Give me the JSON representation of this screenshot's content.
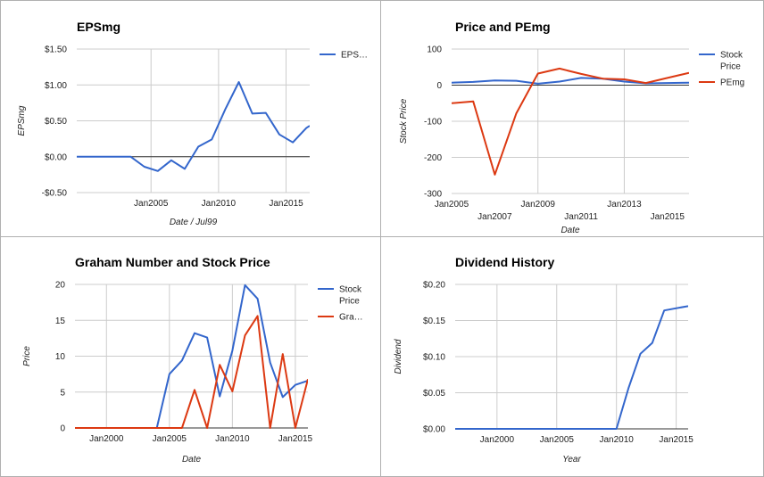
{
  "chart_data": [
    {
      "id": "eps",
      "type": "line",
      "title": "EPSmg",
      "xlabel": "Date / Jul99",
      "ylabel": "EPSmg",
      "x_type": "year",
      "xlim": [
        1999.5,
        2016.75
      ],
      "ylim": [
        -0.5,
        1.5
      ],
      "yticks": [
        {
          "v": 1.5,
          "label": "$1.50"
        },
        {
          "v": 1.0,
          "label": "$1.00"
        },
        {
          "v": 0.5,
          "label": "$0.50"
        },
        {
          "v": 0.0,
          "label": "$0.00"
        },
        {
          "v": -0.5,
          "label": "-$0.50"
        }
      ],
      "xticks": [
        {
          "v": 2005,
          "label": "Jan2005"
        },
        {
          "v": 2010,
          "label": "Jan2010"
        },
        {
          "v": 2015,
          "label": "Jan2015"
        }
      ],
      "xgrid": [
        2005,
        2010,
        2015
      ],
      "zero_line": 0,
      "legend_position": "right",
      "series": [
        {
          "name": "EPS…",
          "color": "#3366cc",
          "x": [
            1999.5,
            2002,
            2003.5,
            2004.5,
            2005.5,
            2006.5,
            2007.5,
            2008.5,
            2009.5,
            2010.5,
            2011.5,
            2012.5,
            2013.5,
            2014.5,
            2015.5,
            2016.5,
            2016.75
          ],
          "y": [
            0.0,
            0.0,
            0.0,
            -0.14,
            -0.2,
            -0.05,
            -0.17,
            0.14,
            0.24,
            0.66,
            1.04,
            0.6,
            0.61,
            0.31,
            0.2,
            0.4,
            0.43
          ]
        }
      ]
    },
    {
      "id": "price_pe",
      "type": "line",
      "title": "Price and PEmg",
      "xlabel": "Date",
      "ylabel": "Stock Price",
      "x_type": "year",
      "xlim": [
        2005,
        2016
      ],
      "ylim": [
        -300,
        100
      ],
      "yticks": [
        {
          "v": 100,
          "label": "100"
        },
        {
          "v": 0,
          "label": "0"
        },
        {
          "v": -100,
          "label": "-100"
        },
        {
          "v": -200,
          "label": "-200"
        },
        {
          "v": -300,
          "label": "-300"
        }
      ],
      "xticks": [
        {
          "v": 2005,
          "label": "Jan2005",
          "row": 0
        },
        {
          "v": 2007,
          "label": "Jan2007",
          "row": 1
        },
        {
          "v": 2009,
          "label": "Jan2009",
          "row": 0
        },
        {
          "v": 2011,
          "label": "Jan2011",
          "row": 1
        },
        {
          "v": 2013,
          "label": "Jan2013",
          "row": 0
        },
        {
          "v": 2015,
          "label": "Jan2015",
          "row": 1
        }
      ],
      "xgrid": [
        2009,
        2013
      ],
      "zero_line": 0,
      "legend_position": "right",
      "series": [
        {
          "name": "Stock Price",
          "color": "#3366cc",
          "x": [
            2005,
            2006,
            2007,
            2008,
            2009,
            2010,
            2011,
            2012,
            2013,
            2014,
            2015,
            2016
          ],
          "y": [
            7,
            9,
            13,
            12,
            4,
            10,
            20,
            18,
            10,
            5,
            6,
            7
          ]
        },
        {
          "name": "PEmg",
          "color": "#dc3912",
          "x": [
            2005,
            2006,
            2007,
            2008,
            2009,
            2010,
            2011,
            2012,
            2013,
            2014,
            2015,
            2016
          ],
          "y": [
            -50,
            -45,
            -248,
            -78,
            32,
            46,
            31,
            18,
            16,
            6,
            20,
            34
          ]
        }
      ]
    },
    {
      "id": "graham",
      "type": "line",
      "title": "Graham Number and Stock Price",
      "xlabel": "Date",
      "ylabel": "Price",
      "x_type": "year",
      "xlim": [
        1997.5,
        2016
      ],
      "ylim": [
        0,
        20
      ],
      "yticks": [
        {
          "v": 20,
          "label": "20"
        },
        {
          "v": 15,
          "label": "15"
        },
        {
          "v": 10,
          "label": "10"
        },
        {
          "v": 5,
          "label": "5"
        },
        {
          "v": 0,
          "label": "0"
        }
      ],
      "xticks": [
        {
          "v": 2000,
          "label": "Jan2000"
        },
        {
          "v": 2005,
          "label": "Jan2005"
        },
        {
          "v": 2010,
          "label": "Jan2010"
        },
        {
          "v": 2015,
          "label": "Jan2015"
        }
      ],
      "xgrid": [
        2000,
        2005,
        2010,
        2015
      ],
      "zero_line": 0,
      "legend_position": "right",
      "series": [
        {
          "name": "Stock Price",
          "color": "#3366cc",
          "x": [
            1997.5,
            2004,
            2005,
            2006,
            2007,
            2008,
            2009,
            2010,
            2011,
            2012,
            2013,
            2014,
            2015,
            2016
          ],
          "y": [
            0,
            0,
            7.5,
            9.4,
            13.2,
            12.6,
            4.4,
            10.8,
            19.9,
            18.0,
            9.1,
            4.3,
            6.0,
            6.6
          ]
        },
        {
          "name": "Gra…",
          "color": "#dc3912",
          "x": [
            1997.5,
            2006,
            2007,
            2008,
            2009,
            2010,
            2011,
            2012,
            2013,
            2014,
            2015,
            2016
          ],
          "y": [
            0,
            0,
            5.3,
            0,
            8.8,
            5.1,
            12.9,
            15.6,
            0,
            10.3,
            0,
            6.8
          ]
        }
      ]
    },
    {
      "id": "dividend",
      "type": "line",
      "title": "Dividend History",
      "xlabel": "Year",
      "ylabel": "Dividend",
      "x_type": "year",
      "xlim": [
        1996.5,
        2016
      ],
      "ylim": [
        0,
        0.2
      ],
      "yticks": [
        {
          "v": 0.2,
          "label": "$0.20"
        },
        {
          "v": 0.15,
          "label": "$0.15"
        },
        {
          "v": 0.1,
          "label": "$0.10"
        },
        {
          "v": 0.05,
          "label": "$0.05"
        },
        {
          "v": 0.0,
          "label": "$0.00"
        }
      ],
      "xticks": [
        {
          "v": 2000,
          "label": "Jan2000"
        },
        {
          "v": 2005,
          "label": "Jan2005"
        },
        {
          "v": 2010,
          "label": "Jan2010"
        },
        {
          "v": 2015,
          "label": "Jan2015"
        }
      ],
      "xgrid": [
        2000,
        2005,
        2010,
        2015
      ],
      "zero_line": 0,
      "legend_position": "none",
      "series": [
        {
          "name": "",
          "color": "#3366cc",
          "x": [
            1996.5,
            2010,
            2011,
            2012,
            2013,
            2014,
            2016
          ],
          "y": [
            0,
            0,
            0.056,
            0.104,
            0.119,
            0.164,
            0.17
          ]
        }
      ]
    }
  ]
}
